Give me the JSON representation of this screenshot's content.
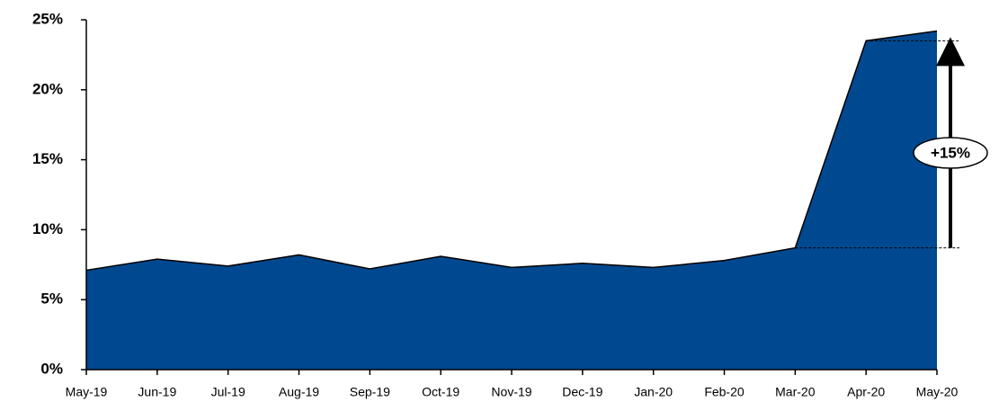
{
  "chart_data": {
    "type": "area",
    "categories": [
      "May-19",
      "Jun-19",
      "Jul-19",
      "Aug-19",
      "Sep-19",
      "Oct-19",
      "Nov-19",
      "Dec-19",
      "Jan-20",
      "Feb-20",
      "Mar-20",
      "Apr-20",
      "May-20"
    ],
    "values": [
      7.1,
      7.9,
      7.4,
      8.2,
      7.2,
      8.1,
      7.3,
      7.6,
      7.3,
      7.8,
      8.7,
      23.5,
      24.2
    ],
    "color": "#004990",
    "ylim": [
      0,
      25
    ],
    "yticks": [
      {
        "value": 0,
        "label": "0%"
      },
      {
        "value": 5,
        "label": "5%"
      },
      {
        "value": 10,
        "label": "10%"
      },
      {
        "value": 15,
        "label": "15%"
      },
      {
        "value": 20,
        "label": "20%"
      },
      {
        "value": 25,
        "label": "25%"
      }
    ],
    "annotation": "+15%"
  }
}
